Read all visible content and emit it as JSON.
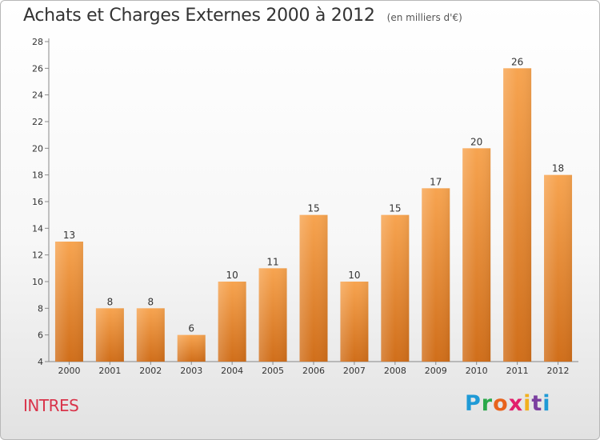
{
  "header": {
    "title": "Achats et Charges Externes 2000 à 2012",
    "subtitle": "(en milliers d'€)"
  },
  "footer": {
    "commune": "INTRES",
    "logo": "Proxiti"
  },
  "colors": {
    "bar_top": "#f7a450",
    "bar_bottom": "#d06e1a",
    "commune_text": "#d9344a"
  },
  "chart_data": {
    "type": "bar",
    "title": "Achats et Charges Externes 2000 à 2012",
    "subtitle": "(en milliers d'€)",
    "xlabel": "",
    "ylabel": "",
    "ylim": [
      4,
      28
    ],
    "yticks": [
      4,
      6,
      8,
      10,
      12,
      14,
      16,
      18,
      20,
      22,
      24,
      26,
      28
    ],
    "grid": false,
    "categories": [
      "2000",
      "2001",
      "2002",
      "2003",
      "2004",
      "2005",
      "2006",
      "2007",
      "2008",
      "2009",
      "2010",
      "2011",
      "2012"
    ],
    "values": [
      13,
      8,
      8,
      6,
      10,
      11,
      15,
      10,
      15,
      17,
      20,
      26,
      18
    ]
  }
}
